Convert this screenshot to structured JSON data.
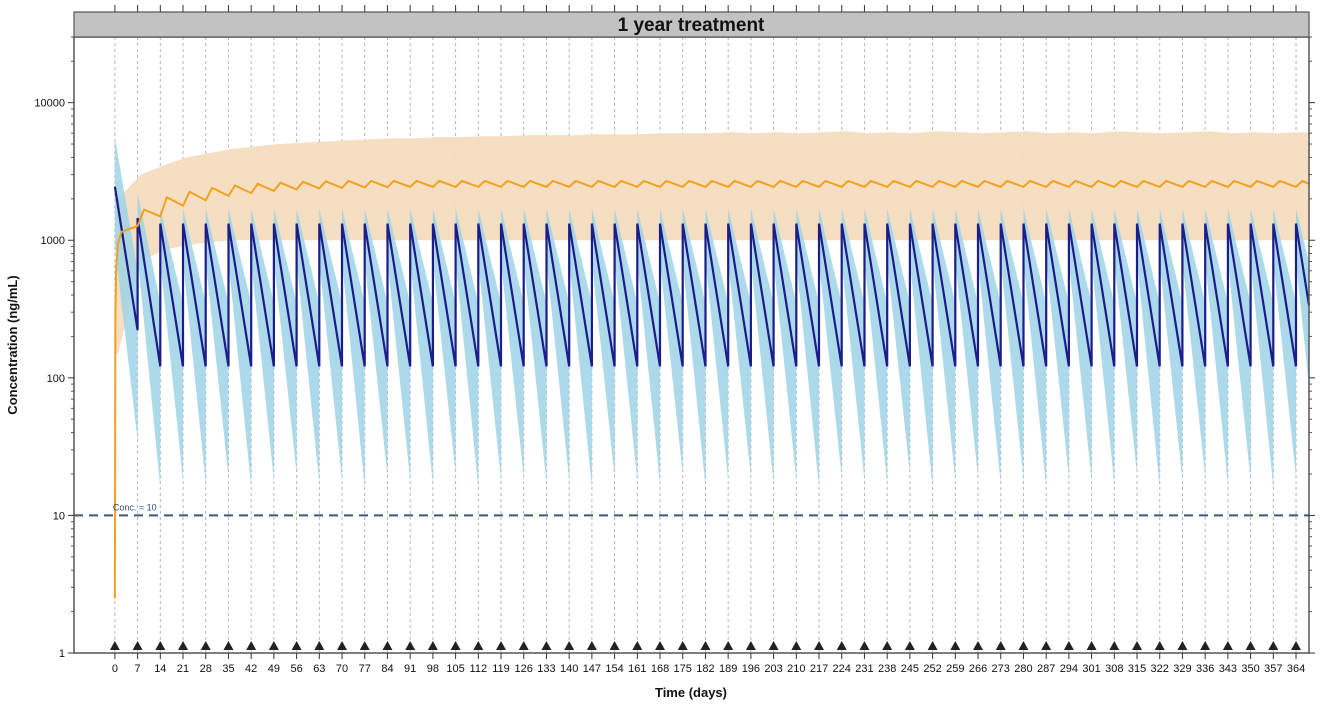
{
  "chart_data": {
    "type": "line",
    "title": "1 year treatment",
    "xlabel": "Time (days)",
    "ylabel": "Concentration (ng/mL)",
    "y_scale": "log",
    "xlim": [
      -12.6,
      368
    ],
    "ylim": [
      1,
      30000
    ],
    "grid": "vertical dashed at each dose",
    "x_ticks": [
      0,
      7,
      14,
      21,
      28,
      35,
      42,
      49,
      56,
      63,
      70,
      77,
      84,
      91,
      98,
      105,
      112,
      119,
      126,
      133,
      140,
      147,
      154,
      161,
      168,
      175,
      182,
      189,
      196,
      203,
      210,
      217,
      224,
      231,
      238,
      245,
      252,
      259,
      266,
      273,
      280,
      287,
      294,
      301,
      308,
      315,
      322,
      329,
      336,
      343,
      350,
      357,
      364
    ],
    "y_ticks": [
      1,
      10,
      100,
      1000,
      10000
    ],
    "y_tick_labels": [
      "1",
      "10",
      "100",
      "1000",
      "10000"
    ],
    "dose_times": [
      0,
      7,
      14,
      21,
      28,
      35,
      42,
      49,
      56,
      63,
      70,
      77,
      84,
      91,
      98,
      105,
      112,
      119,
      126,
      133,
      140,
      147,
      154,
      161,
      168,
      175,
      182,
      189,
      196,
      203,
      210,
      217,
      224,
      231,
      238,
      245,
      252,
      259,
      266,
      273,
      280,
      287,
      294,
      301,
      308,
      315,
      322,
      329,
      336,
      343,
      350,
      357,
      364
    ],
    "dose_marker": "triangle",
    "reference_line": {
      "value": 10,
      "label": "Conc. = 10",
      "color": "#3b5a7a"
    },
    "weekly_series": {
      "color_line": "#1c1c8a",
      "color_band": "#9dd3e6",
      "median_peak": [
        2450,
        1450,
        1320,
        1320,
        1320,
        1320,
        1320,
        1320,
        1320,
        1320,
        1320,
        1320,
        1320,
        1320,
        1320,
        1320,
        1320,
        1320,
        1320,
        1320,
        1320,
        1320,
        1320,
        1320,
        1320,
        1320,
        1320,
        1320,
        1320,
        1320,
        1320,
        1320,
        1320,
        1320,
        1320,
        1320,
        1320,
        1320,
        1320,
        1320,
        1320,
        1320,
        1320,
        1320,
        1320,
        1320,
        1320,
        1320,
        1320,
        1320,
        1320,
        1320,
        1320
      ],
      "median_trough": [
        222,
        121,
        121,
        121,
        121,
        121,
        121,
        121,
        121,
        121,
        121,
        121,
        121,
        121,
        121,
        121,
        121,
        121,
        121,
        121,
        121,
        121,
        121,
        121,
        121,
        121,
        121,
        121,
        121,
        121,
        121,
        121,
        121,
        121,
        121,
        121,
        121,
        121,
        121,
        121,
        121,
        121,
        121,
        121,
        121,
        121,
        121,
        121,
        121,
        121,
        121,
        121,
        121
      ],
      "band_upper_peak": [
        5600,
        2200,
        1700,
        1700,
        1700,
        1700,
        1700,
        1700,
        1700,
        1700,
        1700,
        1700,
        1700,
        1700,
        1700,
        1700,
        1700,
        1700,
        1700,
        1700,
        1700,
        1700,
        1700,
        1700,
        1700,
        1700,
        1700,
        1700,
        1700,
        1700,
        1700,
        1700,
        1700,
        1700,
        1700,
        1700,
        1700,
        1700,
        1700,
        1700,
        1700,
        1700,
        1700,
        1700,
        1700,
        1700,
        1700,
        1700,
        1700,
        1700,
        1700,
        1700,
        1700
      ],
      "band_lower_peak": [
        900,
        750,
        700,
        700,
        700,
        700,
        700,
        700,
        700,
        700,
        700,
        700,
        700,
        700,
        700,
        700,
        700,
        700,
        700,
        700,
        700,
        700,
        700,
        700,
        700,
        700,
        700,
        700,
        700,
        700,
        700,
        700,
        700,
        700,
        700,
        700,
        700,
        700,
        700,
        700,
        700,
        700,
        700,
        700,
        700,
        700,
        700,
        700,
        700,
        700,
        700,
        700,
        700
      ],
      "band_upper_trough": [
        600,
        350,
        350,
        350,
        350,
        350,
        350,
        350,
        350,
        350,
        350,
        350,
        350,
        350,
        350,
        350,
        350,
        350,
        350,
        350,
        350,
        350,
        350,
        350,
        350,
        350,
        350,
        350,
        350,
        350,
        350,
        350,
        350,
        350,
        350,
        350,
        350,
        350,
        350,
        350,
        350,
        350,
        350,
        350,
        350,
        350,
        350,
        350,
        350,
        350,
        350,
        350,
        350
      ],
      "band_lower_trough": [
        35,
        16,
        18,
        17,
        19,
        16,
        18,
        20,
        17,
        18,
        16,
        19,
        18,
        17,
        20,
        16,
        18,
        19,
        17,
        18,
        16,
        19,
        18,
        17,
        20,
        16,
        18,
        19,
        17,
        18,
        16,
        19,
        18,
        17,
        20,
        16,
        18,
        19,
        17,
        18,
        16,
        19,
        18,
        17,
        20,
        16,
        18,
        19,
        17,
        18,
        16,
        19,
        18
      ]
    },
    "accumulating_series": {
      "color_line": "#f0a21e",
      "color_band": "#f6dcc0",
      "early_points": [
        [
          0,
          2.5
        ],
        [
          0.15,
          300
        ],
        [
          0.4,
          650
        ],
        [
          1,
          950
        ],
        [
          2,
          1150
        ]
      ],
      "trough_at_dose": [
        2.5,
        1270,
        1490,
        1780,
        1950,
        2100,
        2200,
        2280,
        2340,
        2380,
        2400,
        2420,
        2430,
        2440,
        2440,
        2440,
        2440,
        2440,
        2440,
        2440,
        2440,
        2440,
        2440,
        2440,
        2440,
        2440,
        2440,
        2440,
        2440,
        2440,
        2440,
        2440,
        2440,
        2440,
        2440,
        2440,
        2440,
        2440,
        2440,
        2440,
        2440,
        2440,
        2440,
        2440,
        2440,
        2440,
        2440,
        2440,
        2440,
        2440,
        2440,
        2440,
        2440
      ],
      "peak_after_dose": [
        1150,
        1670,
        2050,
        2250,
        2400,
        2500,
        2570,
        2620,
        2660,
        2680,
        2700,
        2700,
        2700,
        2700,
        2700,
        2700,
        2700,
        2700,
        2700,
        2700,
        2700,
        2700,
        2700,
        2700,
        2700,
        2700,
        2700,
        2700,
        2700,
        2700,
        2700,
        2700,
        2700,
        2700,
        2700,
        2700,
        2700,
        2700,
        2700,
        2700,
        2700,
        2700,
        2700,
        2700,
        2700,
        2700,
        2700,
        2700,
        2700,
        2700,
        2700,
        2700,
        2700
      ],
      "band_upper": [
        2000,
        3000,
        3500,
        4000,
        4300,
        4600,
        4800,
        5000,
        5100,
        5200,
        5300,
        5400,
        5500,
        5500,
        5600,
        5600,
        5700,
        5700,
        5800,
        5800,
        5800,
        5900,
        5900,
        5900,
        6000,
        6000,
        6000,
        6100,
        6000,
        6100,
        6000,
        6100,
        6200,
        6000,
        6100,
        6000,
        6200,
        6100,
        6000,
        6100,
        6200,
        6000,
        6100,
        6000,
        6200,
        6100,
        6000,
        6100,
        6200,
        6000,
        6100,
        6000,
        6100
      ],
      "band_lower": [
        150,
        700,
        850,
        920,
        970,
        1000,
        1000,
        1000,
        1000,
        1000,
        1000,
        1000,
        1000,
        1000,
        1000,
        1000,
        1000,
        1000,
        1000,
        1000,
        1000,
        1000,
        1000,
        1000,
        1000,
        1000,
        1000,
        1000,
        1000,
        1000,
        1000,
        1000,
        1000,
        1000,
        1000,
        1000,
        1000,
        1000,
        1000,
        1000,
        1000,
        1000,
        1000,
        1000,
        1000,
        1000,
        1000,
        1000,
        1000,
        1000,
        1000,
        1000,
        1000
      ]
    }
  }
}
